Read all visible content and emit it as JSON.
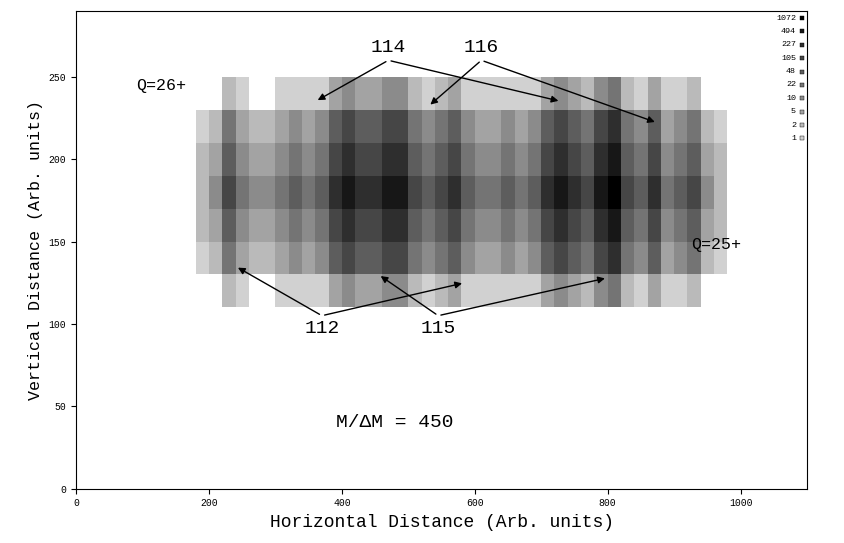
{
  "chart_data": {
    "type": "heatmap",
    "xlabel": "Horizontal Distance (Arb. units)",
    "ylabel": "Vertical Distance (Arb. units)",
    "xlim": [
      0,
      1100
    ],
    "ylim": [
      0,
      290
    ],
    "xticks": [
      0,
      200,
      400,
      600,
      800,
      1000
    ],
    "yticks": [
      0,
      50,
      100,
      150,
      200,
      250
    ],
    "x_edges": [
      180,
      200,
      220,
      240,
      260,
      280,
      300,
      320,
      340,
      360,
      380,
      400,
      420,
      440,
      460,
      480,
      500,
      520,
      540,
      560,
      580,
      600,
      620,
      640,
      660,
      680,
      700,
      720,
      740,
      760,
      780,
      800,
      820,
      840,
      860,
      880,
      900,
      920,
      940,
      960,
      980
    ],
    "y_edges": [
      110,
      130,
      150,
      170,
      190,
      210,
      230,
      250
    ],
    "cells": [
      [
        0,
        0,
        3,
        1,
        0,
        0,
        1,
        1,
        1,
        1,
        7,
        15,
        7,
        7,
        15,
        15,
        3,
        1,
        3,
        7,
        1,
        1,
        1,
        1,
        1,
        1,
        7,
        15,
        7,
        3,
        15,
        32,
        3,
        1,
        7,
        1,
        1,
        3,
        0,
        0
      ],
      [
        1,
        3,
        32,
        7,
        3,
        3,
        7,
        14,
        7,
        14,
        68,
        148,
        68,
        68,
        148,
        148,
        32,
        14,
        32,
        68,
        14,
        7,
        7,
        14,
        7,
        14,
        68,
        148,
        68,
        32,
        148,
        322,
        32,
        14,
        68,
        7,
        14,
        32,
        3,
        1
      ],
      [
        2,
        8,
        84,
        18,
        8,
        8,
        18,
        38,
        18,
        38,
        182,
        395,
        182,
        182,
        395,
        395,
        84,
        38,
        84,
        182,
        38,
        18,
        18,
        38,
        18,
        38,
        182,
        395,
        182,
        84,
        395,
        858,
        84,
        38,
        182,
        18,
        38,
        84,
        8,
        2
      ],
      [
        2,
        10,
        105,
        22,
        10,
        10,
        22,
        48,
        22,
        48,
        227,
        494,
        227,
        227,
        494,
        494,
        105,
        48,
        105,
        227,
        48,
        22,
        22,
        48,
        22,
        48,
        227,
        494,
        227,
        105,
        494,
        1072,
        105,
        48,
        227,
        22,
        48,
        105,
        10,
        2
      ],
      [
        2,
        8,
        84,
        18,
        8,
        8,
        18,
        38,
        18,
        38,
        182,
        395,
        182,
        182,
        395,
        395,
        84,
        38,
        84,
        182,
        38,
        18,
        18,
        38,
        18,
        38,
        182,
        395,
        182,
        84,
        395,
        858,
        84,
        38,
        182,
        18,
        38,
        84,
        8,
        2
      ],
      [
        1,
        3,
        32,
        7,
        3,
        3,
        7,
        14,
        7,
        14,
        68,
        148,
        68,
        68,
        148,
        148,
        32,
        14,
        32,
        68,
        14,
        7,
        7,
        14,
        7,
        14,
        68,
        148,
        68,
        32,
        148,
        322,
        32,
        14,
        68,
        7,
        14,
        32,
        3,
        1
      ],
      [
        0,
        0,
        3,
        1,
        0,
        0,
        1,
        1,
        1,
        1,
        7,
        15,
        7,
        7,
        15,
        15,
        3,
        1,
        3,
        7,
        1,
        1,
        1,
        1,
        1,
        1,
        7,
        15,
        7,
        3,
        15,
        32,
        3,
        1,
        7,
        1,
        1,
        3,
        0,
        0
      ]
    ],
    "levels": [
      1072,
      494,
      227,
      105,
      48,
      22,
      10,
      5,
      2,
      1
    ],
    "annotations": [
      "114",
      "116",
      "112",
      "115",
      "Q=26+",
      "Q=25+",
      "M/ΔM = 450"
    ]
  }
}
